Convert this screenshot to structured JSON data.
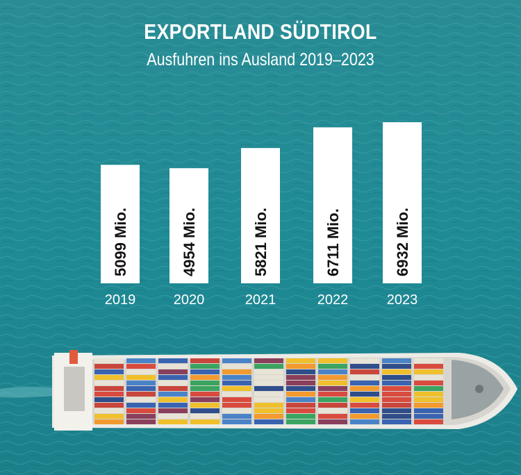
{
  "chart_data": {
    "type": "bar",
    "title": "EXPORTLAND SÜDTIROL",
    "subtitle": "Ausfuhren ins Ausland 2019–2023",
    "categories": [
      "2019",
      "2020",
      "2021",
      "2022",
      "2023"
    ],
    "values": [
      5099,
      4954,
      5821,
      6711,
      6932
    ],
    "value_labels": [
      "5099 Mio.",
      "4954 Mio.",
      "5821 Mio.",
      "6711 Mio.",
      "6932 Mio."
    ],
    "ylim": [
      0,
      6932
    ],
    "grid": false,
    "legend": "none"
  },
  "colors": {
    "bar": "#ffffff",
    "label": "#111111",
    "sea": "#1f8e97",
    "ship_hull": "#ecebe6"
  },
  "background": "container ship on sea"
}
